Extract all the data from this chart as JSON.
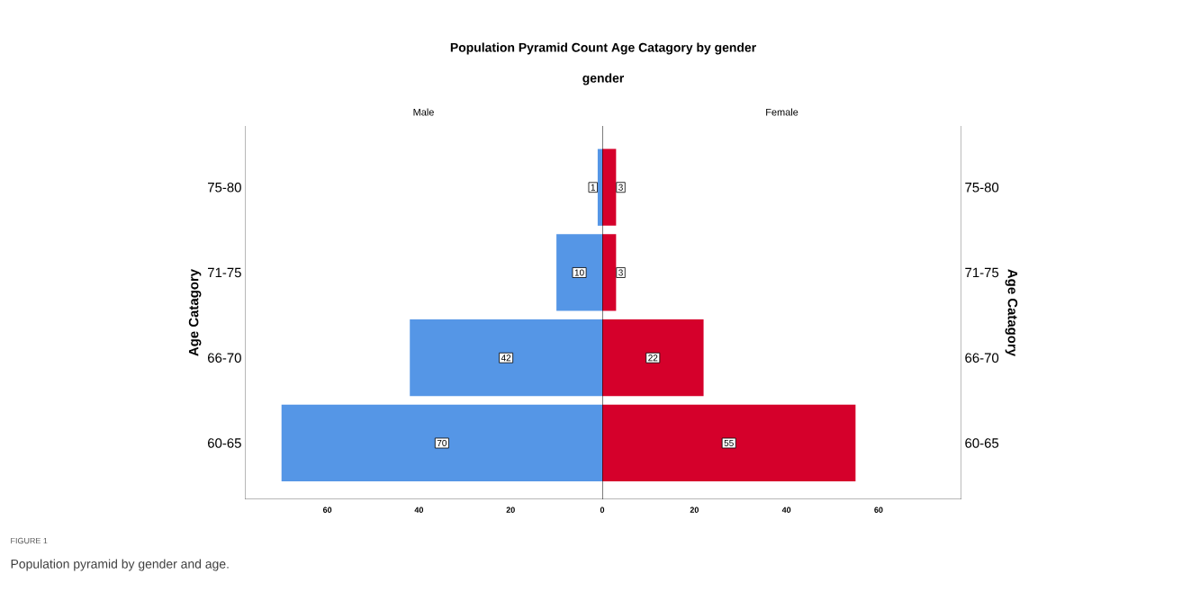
{
  "chart_data": [
    {
      "type": "other",
      "title": "Population Pyramid Count Age Catagory  by gender",
      "subtitle": "gender",
      "annotations": [
        "FIGURE 1",
        "Population pyramid by gender and age."
      ]
    },
    {
      "type": "bar",
      "orientation": "horizontal",
      "title": "Male",
      "categories": [
        "75-80",
        "71-75",
        "66-70",
        "60-65"
      ],
      "values": [
        1,
        10,
        42,
        70
      ],
      "color": "#5596e6",
      "xlim": [
        78,
        0
      ],
      "xticks": [
        60,
        40,
        20,
        0
      ],
      "ylabel": "Age Catagory",
      "data_labels": true
    },
    {
      "type": "bar",
      "orientation": "horizontal",
      "title": "Female",
      "categories": [
        "75-80",
        "71-75",
        "66-70",
        "60-65"
      ],
      "values": [
        3,
        3,
        22,
        55
      ],
      "color": "#d5002b",
      "xlim": [
        0,
        78
      ],
      "xticks": [
        20,
        40,
        60
      ],
      "ylabel": "Age Catagory",
      "data_labels": true
    }
  ]
}
